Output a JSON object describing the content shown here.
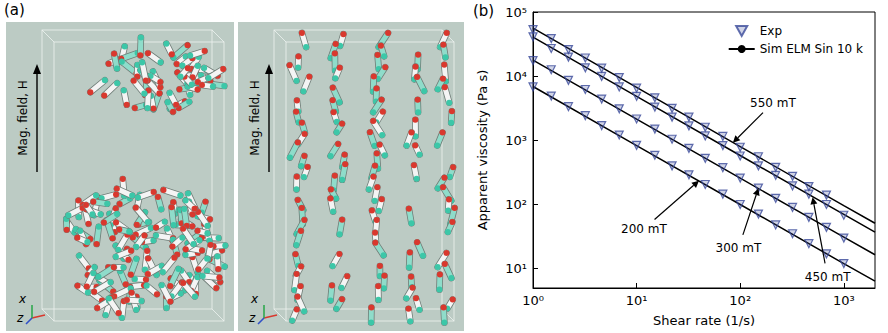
{
  "panel_a": {
    "label": "(a)",
    "views": [
      {
        "field_label": "Mag. field, H",
        "axis_labels": [
          "x",
          "z"
        ]
      },
      {
        "field_label": "Mag. field, H",
        "axis_labels": [
          "x",
          "z"
        ]
      }
    ]
  },
  "chart_data": {
    "type": "line",
    "panel": "(b)",
    "x_label": "Shear rate (1/s)",
    "y_label": "Apparent viscosity (Pa s)",
    "log": true,
    "grid": false,
    "legend": "top-right",
    "xlim": [
      1,
      2000
    ],
    "ylim": [
      5,
      100000
    ],
    "xticks": [
      {
        "value": 1,
        "label": "10⁰"
      },
      {
        "value": 10,
        "label": "10¹"
      },
      {
        "value": 100,
        "label": "10²"
      },
      {
        "value": 1000,
        "label": "10³"
      }
    ],
    "yticks": [
      {
        "value": 10,
        "label": "10¹"
      },
      {
        "value": 100,
        "label": "10²"
      },
      {
        "value": 1000,
        "label": "10³"
      },
      {
        "value": 10000,
        "label": "10⁴"
      },
      {
        "value": 100000,
        "label": "10⁵"
      }
    ],
    "series": [
      {
        "name": "Exp",
        "type": "scatter",
        "marker": "triangle-down",
        "color": "#3a4a9a",
        "x": [
          1,
          1.5,
          2.2,
          3.2,
          4.6,
          6.8,
          10,
          15,
          22,
          32,
          46,
          68,
          100,
          150,
          220,
          320,
          460,
          680
        ],
        "values": [
          53000,
          38500,
          26000,
          19200,
          13300,
          9500,
          6500,
          4600,
          3150,
          2300,
          1600,
          1150,
          780,
          555,
          380,
          275,
          190,
          140
        ]
      },
      {
        "name": "Exp",
        "type": "scatter",
        "marker": "triangle-down",
        "color": "#3a4a9a",
        "x": [
          1,
          1.5,
          2.2,
          3.2,
          4.6,
          6.8,
          10,
          15,
          22,
          32,
          46,
          68,
          100,
          150,
          220,
          320,
          460,
          680,
          1000
        ],
        "values": [
          41000,
          27000,
          19800,
          13500,
          9900,
          6800,
          4850,
          3300,
          2300,
          1680,
          1170,
          830,
          570,
          400,
          285,
          195,
          145,
          100,
          68
        ]
      },
      {
        "name": "Exp",
        "type": "scatter",
        "marker": "triangle-down",
        "color": "#3a4a9a",
        "x": [
          1,
          1.5,
          2.2,
          3.2,
          4.6,
          6.8,
          10,
          15,
          22,
          32,
          46,
          68,
          100,
          150,
          220,
          320,
          460,
          680,
          1000
        ],
        "values": [
          17500,
          12600,
          8600,
          6200,
          4400,
          3100,
          2150,
          1500,
          1040,
          750,
          525,
          375,
          258,
          180,
          125,
          90,
          63,
          44,
          30
        ]
      },
      {
        "name": "Exp",
        "type": "scatter",
        "marker": "triangle-down",
        "color": "#3a4a9a",
        "x": [
          1,
          1.5,
          2.2,
          3.2,
          4.6,
          6.8,
          10,
          15,
          22,
          32,
          46,
          68,
          100,
          150,
          220,
          320,
          460,
          680,
          1000
        ],
        "values": [
          6800,
          4900,
          3350,
          2420,
          1700,
          1210,
          835,
          585,
          400,
          290,
          205,
          145,
          100,
          71,
          48,
          35,
          24.5,
          17,
          12
        ]
      },
      {
        "name": "Sim ELM Sin 10 k",
        "type": "line",
        "marker": "none",
        "line_style": "solid",
        "color": "#000000",
        "x": [
          1,
          10,
          100,
          1000,
          2000
        ],
        "values": [
          56000,
          6700,
          800,
          96,
          51
        ]
      },
      {
        "name": "Sim ELM Sin 10 k",
        "type": "line",
        "marker": "none",
        "line_style": "solid",
        "color": "#000000",
        "x": [
          1,
          10,
          100,
          1000,
          2000
        ],
        "values": [
          40500,
          4850,
          580,
          70,
          37
        ]
      },
      {
        "name": "Sim ELM Sin 10 k",
        "type": "line",
        "marker": "none",
        "line_style": "solid",
        "color": "#000000",
        "x": [
          1,
          10,
          100,
          1000,
          2000
        ],
        "values": [
          17800,
          2140,
          257,
          31,
          16.5
        ]
      },
      {
        "name": "Sim ELM Sin 10 k",
        "type": "line",
        "marker": "none",
        "line_style": "solid",
        "color": "#000000",
        "x": [
          1,
          10,
          100,
          1000,
          2000
        ],
        "values": [
          6900,
          830,
          100,
          12,
          6.4
        ]
      }
    ],
    "annotations": [
      {
        "text": "550 mT",
        "x": 85,
        "y": 920
      },
      {
        "text": "200 mT",
        "x": 40,
        "y": 235
      },
      {
        "text": "300 mT",
        "x": 150,
        "y": 180
      },
      {
        "text": "450 mT",
        "x": 500,
        "y": 130
      }
    ]
  }
}
